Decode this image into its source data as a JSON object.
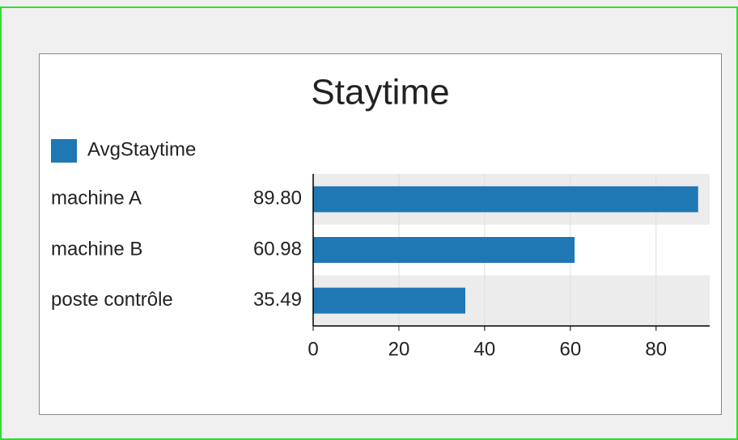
{
  "chart_data": {
    "type": "bar",
    "orientation": "horizontal",
    "title": "Staytime",
    "categories": [
      "machine A",
      "machine B",
      "poste contrôle"
    ],
    "series": [
      {
        "name": "AvgStaytime",
        "color": "#1f77b4",
        "values": [
          89.8,
          60.98,
          35.49
        ],
        "value_labels": [
          "89.80",
          "60.98",
          "35.49"
        ]
      }
    ],
    "xlim": [
      0,
      92.5
    ],
    "xticks": [
      0,
      20,
      40,
      60,
      80
    ],
    "grid": true,
    "legend": "top-left"
  }
}
